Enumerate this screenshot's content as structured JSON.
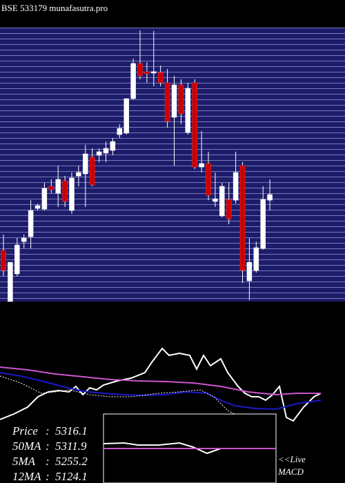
{
  "chart_data": [
    {
      "type": "candlestick",
      "title": "BSE 533179 munafasutra.pro",
      "up_color": "#ffffff",
      "down_color": "#cc0000",
      "background": "#1c1c6b",
      "grid": true,
      "ylim": [
        4425,
        6755
      ],
      "ohlc": [
        [
          4859,
          4994,
          4642,
          4689
        ],
        [
          4425,
          4759,
          4425,
          4759
        ],
        [
          4660,
          4965,
          4642,
          4906
        ],
        [
          4935,
          4994,
          4877,
          4965
        ],
        [
          4976,
          5287,
          4877,
          5199
        ],
        [
          5217,
          5258,
          5199,
          5241
        ],
        [
          5211,
          5435,
          5199,
          5388
        ],
        [
          5405,
          5464,
          5346,
          5376
        ],
        [
          5346,
          5581,
          5229,
          5464
        ],
        [
          5452,
          5493,
          5229,
          5276
        ],
        [
          5199,
          5523,
          5170,
          5476
        ],
        [
          5493,
          5581,
          5405,
          5523
        ],
        [
          5511,
          5757,
          5229,
          5681
        ],
        [
          5652,
          5728,
          5405,
          5417
        ],
        [
          5669,
          5728,
          5611,
          5699
        ],
        [
          5687,
          5786,
          5611,
          5728
        ],
        [
          5710,
          5816,
          5669,
          5786
        ],
        [
          5845,
          5933,
          5816,
          5898
        ],
        [
          5857,
          6151,
          5845,
          6151
        ],
        [
          6151,
          6491,
          6139,
          6450
        ],
        [
          6450,
          6732,
          6315,
          6344
        ],
        [
          6380,
          6462,
          6286,
          6362
        ],
        [
          6368,
          6726,
          6256,
          6380
        ],
        [
          6374,
          6432,
          6256,
          6286
        ],
        [
          6286,
          6403,
          5904,
          5957
        ],
        [
          5992,
          6344,
          5581,
          6268
        ],
        [
          6268,
          6315,
          5933,
          6021
        ],
        [
          5863,
          6286,
          5845,
          6239
        ],
        [
          6286,
          6315,
          5552,
          5569
        ],
        [
          5569,
          5875,
          5523,
          5599
        ],
        [
          5599,
          5699,
          5287,
          5329
        ],
        [
          5276,
          5523,
          5229,
          5299
        ],
        [
          5153,
          5435,
          5141,
          5405
        ],
        [
          5293,
          5435,
          5082,
          5129
        ],
        [
          5287,
          5699,
          5258,
          5523
        ],
        [
          5581,
          5611,
          4583,
          4689
        ],
        [
          4601,
          4965,
          4437,
          4759
        ],
        [
          4689,
          4935,
          4671,
          4883
        ],
        [
          4877,
          5405,
          4865,
          5293
        ],
        [
          5287,
          5464,
          5199,
          5335
        ]
      ]
    },
    {
      "type": "line",
      "xlim": [
        0,
        500
      ],
      "ylim": [
        0,
        140
      ],
      "series": [
        {
          "color": "#ffffff",
          "x": [
            0,
            20,
            40,
            55,
            70,
            85,
            100,
            110,
            120,
            130,
            140,
            150,
            170,
            190,
            210,
            220,
            235,
            245,
            260,
            275,
            285,
            295,
            305,
            320,
            330,
            345,
            355,
            365,
            375,
            385,
            395,
            405,
            415,
            425,
            440,
            455,
            465
          ],
          "values": [
            12,
            20,
            30,
            45,
            52,
            54,
            52,
            60,
            48,
            58,
            55,
            62,
            68,
            72,
            80,
            95,
            115,
            105,
            108,
            105,
            85,
            105,
            90,
            100,
            80,
            60,
            50,
            45,
            45,
            40,
            48,
            60,
            15,
            10,
            30,
            45,
            50
          ]
        },
        {
          "color": "#cc55cc",
          "x": [
            0,
            40,
            80,
            120,
            160,
            200,
            240,
            280,
            320,
            360,
            400,
            430,
            465
          ],
          "values": [
            88,
            84,
            78,
            74,
            70,
            68,
            67,
            65,
            60,
            52,
            48,
            50,
            50
          ]
        },
        {
          "color": "#1a1acc",
          "x": [
            0,
            30,
            60,
            90,
            120,
            150,
            180,
            210,
            240,
            270,
            300,
            320,
            340,
            370,
            400,
            430,
            465
          ],
          "values": [
            80,
            75,
            68,
            60,
            53,
            50,
            48,
            47,
            48,
            52,
            50,
            40,
            32,
            28,
            27,
            35,
            40
          ]
        },
        {
          "color": "#ffffff",
          "dash": true,
          "x": [
            0,
            30,
            60,
            80,
            100,
            130,
            160,
            190,
            230,
            260,
            290,
            310,
            330,
            340
          ],
          "values": [
            75,
            65,
            50,
            52,
            55,
            48,
            45,
            45,
            50,
            52,
            55,
            45,
            25,
            20
          ]
        }
      ]
    },
    {
      "type": "line",
      "title": "MACD",
      "annotation": "<<Live",
      "xlim": [
        150,
        400
      ],
      "ylim": [
        0,
        100
      ],
      "series": [
        {
          "color": "#ffffff",
          "x": [
            150,
            180,
            200,
            230,
            260,
            280,
            300,
            320,
            385
          ],
          "values": [
            57,
            58,
            55,
            55,
            58,
            52,
            43,
            50,
            50
          ]
        },
        {
          "color": "#cc55cc",
          "x": [
            150,
            400
          ],
          "values": [
            50,
            50
          ]
        }
      ]
    }
  ],
  "info": [
    {
      "label": "Price",
      "value": 5316.1
    },
    {
      "label": "50MA",
      "value": 5311.9
    },
    {
      "label": "5MA",
      "value": 5255.2
    },
    {
      "label": "12MA",
      "value": 5124.1
    }
  ]
}
